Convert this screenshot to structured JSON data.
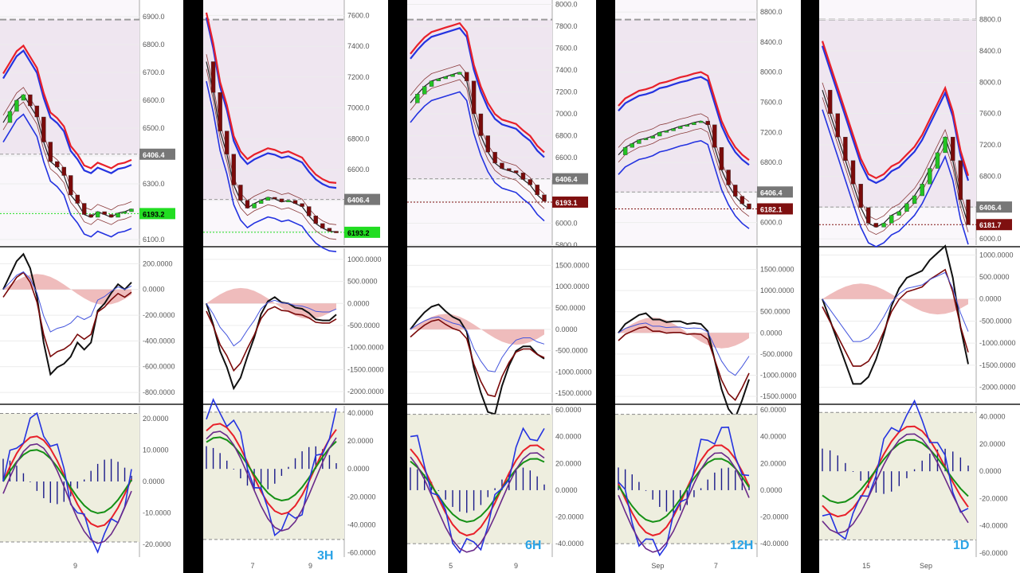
{
  "colors": {
    "price_label": "#7f1010",
    "level_label": "#777777",
    "green_label": "#22dd22",
    "annotation": "#2aa3e6"
  },
  "panels": [
    {
      "timeframe": "",
      "price_ticks": [
        "6900.0",
        "6800.0",
        "6700.0",
        "6600.0",
        "6500.0",
        "6400.0",
        "6300.0",
        "6200.0",
        "6100.0"
      ],
      "price_range": [
        6080,
        6960
      ],
      "level_labels": [
        {
          "text": "6406.4",
          "value": 6406.4,
          "style": "gray"
        },
        {
          "text": "6193.2",
          "value": 6193.2,
          "style": "green"
        }
      ],
      "macd_ticks": [
        "200.0000",
        "0.0000",
        "-200.0000",
        "-400.0000",
        "-600.0000",
        "-800.0000"
      ],
      "macd_range": [
        -880,
        320
      ],
      "osc_ticks": [
        "20.0000",
        "10.0000",
        "0.0000",
        "-10.0000",
        "-20.0000"
      ],
      "osc_range": [
        -24,
        24
      ],
      "x_labels": [
        {
          "text": "9",
          "pos": 0.54
        }
      ],
      "trend": [
        6520,
        6560,
        6600,
        6620,
        6580,
        6540,
        6450,
        6380,
        6360,
        6330,
        6260,
        6230,
        6190,
        6180,
        6200,
        6190,
        6180,
        6195,
        6200,
        6210
      ]
    },
    {
      "timeframe": "3H",
      "price_ticks": [
        "7600.0",
        "7400.0",
        "7200.0",
        "7000.0",
        "6800.0",
        "6600.0",
        "6400.0",
        "6200.0"
      ],
      "price_range": [
        6110,
        7700
      ],
      "level_labels": [
        {
          "text": "6406.4",
          "value": 6406.4,
          "style": "gray"
        },
        {
          "text": "6193.2",
          "value": 6193.2,
          "style": "green"
        }
      ],
      "macd_ticks": [
        "1000.0000",
        "500.0000",
        "0.0000",
        "-500.0000",
        "-1000.0000",
        "-1500.0000",
        "-2000.0000"
      ],
      "macd_range": [
        -2250,
        1250
      ],
      "osc_ticks": [
        "40.0000",
        "20.0000",
        "0.0000",
        "-20.0000",
        "-40.0000",
        "-60.0000"
      ],
      "osc_range": [
        -63,
        45
      ],
      "x_labels": [
        {
          "text": "7",
          "pos": 0.35
        },
        {
          "text": "9",
          "pos": 0.76
        }
      ],
      "trend": [
        7300,
        7100,
        6850,
        6700,
        6500,
        6400,
        6350,
        6380,
        6400,
        6420,
        6410,
        6390,
        6400,
        6380,
        6360,
        6300,
        6250,
        6220,
        6200,
        6195
      ]
    },
    {
      "timeframe": "6H",
      "price_ticks": [
        "8000.0",
        "7800.0",
        "7600.0",
        "7400.0",
        "7200.0",
        "7000.0",
        "6800.0",
        "6600.0",
        "6400.0",
        "6200.0",
        "6000.0",
        "5800.0"
      ],
      "price_range": [
        5800,
        8040
      ],
      "level_labels": [
        {
          "text": "6406.4",
          "value": 6406.4,
          "style": "gray"
        },
        {
          "text": "6193.1",
          "value": 6193.1,
          "style": "red"
        }
      ],
      "macd_ticks": [
        "1500.0000",
        "1000.0000",
        "500.0000",
        "0.0000",
        "-500.0000",
        "-1000.0000",
        "-1500.0000"
      ],
      "macd_range": [
        -1720,
        1900
      ],
      "osc_ticks": [
        "60.0000",
        "40.0000",
        "20.0000",
        "0.0000",
        "-20.0000",
        "-40.0000"
      ],
      "osc_range": [
        -50,
        63
      ],
      "x_labels": [
        {
          "text": "5",
          "pos": 0.3
        },
        {
          "text": "9",
          "pos": 0.75
        }
      ],
      "trend": [
        7100,
        7180,
        7250,
        7300,
        7320,
        7340,
        7360,
        7380,
        7300,
        7000,
        6800,
        6650,
        6550,
        6500,
        6480,
        6460,
        6400,
        6350,
        6260,
        6200
      ]
    },
    {
      "timeframe": "12H",
      "price_ticks": [
        "8800.0",
        "8400.0",
        "8000.0",
        "7600.0",
        "7200.0",
        "6800.0",
        "6400.0",
        "6000.0"
      ],
      "price_range": [
        5700,
        8960
      ],
      "level_labels": [
        {
          "text": "6406.4",
          "value": 6406.4,
          "style": "gray"
        },
        {
          "text": "6182.1",
          "value": 6182.1,
          "style": "red"
        }
      ],
      "macd_ticks": [
        "1500.0000",
        "1000.0000",
        "500.0000",
        "0.0000",
        "-500.0000",
        "-1000.0000",
        "-1500.0000"
      ],
      "macd_range": [
        -1650,
        2000
      ],
      "osc_ticks": [
        "60.0000",
        "40.0000",
        "20.0000",
        "0.0000",
        "-20.0000",
        "-40.0000"
      ],
      "osc_range": [
        -50,
        63
      ],
      "x_labels": [
        {
          "text": "Sep",
          "pos": 0.3
        },
        {
          "text": "7",
          "pos": 0.71
        }
      ],
      "trend": [
        6900,
        7000,
        7050,
        7100,
        7120,
        7150,
        7200,
        7220,
        7250,
        7280,
        7300,
        7330,
        7350,
        7300,
        7000,
        6700,
        6500,
        6350,
        6250,
        6180
      ]
    },
    {
      "timeframe": "1D",
      "price_ticks": [
        "8800.0",
        "8400.0",
        "8000.0",
        "7600.0",
        "7200.0",
        "6800.0",
        "6400.0",
        "6000.0"
      ],
      "price_range": [
        5920,
        9050
      ],
      "level_labels": [
        {
          "text": "6406.4",
          "value": 6406.4,
          "style": "gray"
        },
        {
          "text": "6181.7",
          "value": 6181.7,
          "style": "red"
        }
      ],
      "macd_ticks": [
        "1000.0000",
        "500.0000",
        "0.0000",
        "-500.0000",
        "-1000.0000",
        "-1500.0000",
        "-2000.0000"
      ],
      "macd_range": [
        -2350,
        1150
      ],
      "osc_ticks": [
        "40.0000",
        "20.0000",
        "0.0000",
        "-20.0000",
        "-40.0000",
        "-60.0000"
      ],
      "osc_range": [
        -63,
        48
      ],
      "x_labels": [
        {
          "text": "15",
          "pos": 0.3
        },
        {
          "text": "Sep",
          "pos": 0.68
        }
      ],
      "trend": [
        7900,
        7600,
        7300,
        7000,
        6700,
        6400,
        6200,
        6150,
        6200,
        6300,
        6350,
        6450,
        6550,
        6700,
        6900,
        7100,
        7300,
        7000,
        6500,
        6180
      ]
    }
  ],
  "chart_data": [
    {
      "type": "line",
      "title": "",
      "timeframe": "",
      "ylim": [
        6080,
        6960
      ],
      "levels": [
        6406.4,
        6193.2
      ],
      "x_tick_labels": [
        "9"
      ]
    },
    {
      "type": "line",
      "title": "",
      "timeframe": "3H",
      "ylim": [
        6110,
        7700
      ],
      "levels": [
        6406.4,
        6193.2
      ],
      "x_tick_labels": [
        "7",
        "9"
      ]
    },
    {
      "type": "line",
      "title": "",
      "timeframe": "6H",
      "ylim": [
        5800,
        8040
      ],
      "levels": [
        6406.4,
        6193.1
      ],
      "x_tick_labels": [
        "5",
        "9"
      ]
    },
    {
      "type": "line",
      "title": "",
      "timeframe": "12H",
      "ylim": [
        5700,
        8960
      ],
      "levels": [
        6406.4,
        6182.1
      ],
      "x_tick_labels": [
        "Sep",
        "7"
      ]
    },
    {
      "type": "line",
      "title": "",
      "timeframe": "1D",
      "ylim": [
        5920,
        9050
      ],
      "levels": [
        6406.4,
        6181.7
      ],
      "x_tick_labels": [
        "15",
        "Sep"
      ]
    }
  ]
}
